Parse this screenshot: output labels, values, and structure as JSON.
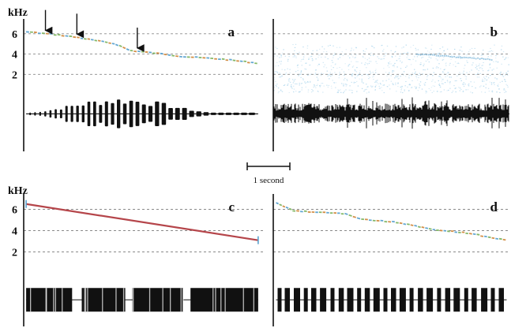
{
  "figure": {
    "unit_label": "kHz",
    "scale_bar_label": "1 second",
    "scale_bar_seconds": 1,
    "colors": {
      "grid": "#8a8a8a",
      "axis": "#111111",
      "waveform": "#111111",
      "tone_line": "#b5454a",
      "noise": "#a9d4ec",
      "trace_blue": "#5aa2cf",
      "trace_green": "#7fb562",
      "trace_orange": "#d18a3e"
    }
  },
  "chart_data": [
    {
      "panel_label": "a",
      "type": "line",
      "title": "",
      "xlabel": "",
      "ylabel": "kHz",
      "yticks": [
        2,
        4,
        6
      ],
      "ylim": [
        -5.6,
        7
      ],
      "xlim": [
        0,
        4.95
      ],
      "grid": true,
      "y_axis_drawn": true,
      "trace": "segmented",
      "series": [
        {
          "x": [
            0.05,
            0.7,
            1.1,
            1.9,
            2.2,
            2.9,
            3.3,
            4.1,
            4.85
          ],
          "y": [
            6.2,
            5.9,
            5.65,
            5.0,
            4.35,
            4.0,
            3.75,
            3.5,
            3.1
          ]
        }
      ],
      "arrows_at_x": [
        0.45,
        1.1,
        2.35
      ],
      "waveform": {
        "kind": "notes",
        "baseline_khz": -1.9,
        "start": 0.05,
        "end": 4.85
      },
      "noise_background": false
    },
    {
      "panel_label": "b",
      "type": "line",
      "xlabel": "",
      "ylabel": "",
      "yticks": [
        2,
        4,
        6
      ],
      "ylim": [
        -5.6,
        7
      ],
      "xlim": [
        0,
        4.3
      ],
      "grid": true,
      "y_axis_drawn": false,
      "trace": "faint",
      "series": [
        {
          "x": [
            2.6,
            4.0
          ],
          "y": [
            4.0,
            3.45
          ]
        }
      ],
      "arrows_at_x": [],
      "waveform": {
        "kind": "noise",
        "baseline_khz": -1.9,
        "start": 0.0,
        "end": 4.3
      },
      "noise_background": true
    },
    {
      "panel_label": "c",
      "type": "line",
      "ylabel": "kHz",
      "xlabel": "",
      "yticks": [
        2,
        4,
        6
      ],
      "ylim": [
        -5.0,
        7
      ],
      "xlim": [
        0,
        4.95
      ],
      "grid": true,
      "y_axis_drawn": true,
      "trace": "tone",
      "series": [
        {
          "x": [
            0.05,
            4.85
          ],
          "y": [
            6.5,
            3.1
          ]
        }
      ],
      "arrows_at_x": [],
      "waveform": {
        "kind": "blocks",
        "baseline_khz": -2.5,
        "start": 0.05,
        "end": 4.85
      },
      "noise_background": false
    },
    {
      "panel_label": "d",
      "type": "line",
      "ylabel": "",
      "xlabel": "",
      "yticks": [
        2,
        4,
        6
      ],
      "ylim": [
        -5.0,
        7
      ],
      "xlim": [
        0,
        4.3
      ],
      "grid": true,
      "y_axis_drawn": true,
      "trace": "segmented",
      "series": [
        {
          "x": [
            0.05,
            0.35,
            0.7,
            1.3,
            1.6,
            2.3,
            2.9,
            3.5,
            4.25
          ],
          "y": [
            6.6,
            5.9,
            5.75,
            5.6,
            5.1,
            4.75,
            4.1,
            3.8,
            3.1
          ]
        }
      ],
      "arrows_at_x": [],
      "waveform": {
        "kind": "pulses",
        "baseline_khz": -2.5,
        "start": 0.05,
        "end": 4.25
      },
      "noise_background": false
    }
  ]
}
